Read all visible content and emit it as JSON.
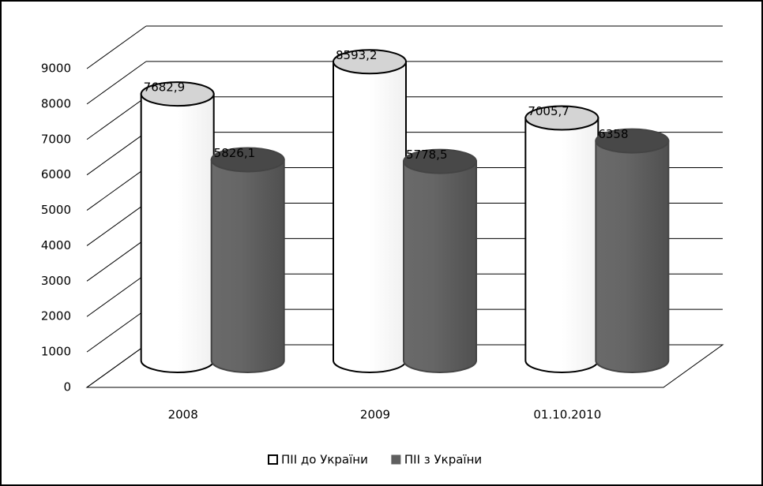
{
  "chart_data": {
    "type": "bar",
    "categories": [
      "2008",
      "2009",
      "01.10.2010"
    ],
    "series": [
      {
        "name": "ПІІ до України",
        "color": "#ffffff",
        "values": [
          7682.9,
          8593.2,
          7005.7
        ],
        "value_labels": [
          "7682,9",
          "8593,2",
          "7005,7"
        ]
      },
      {
        "name": "ПІІ з України",
        "color": "#5f5f5f",
        "values": [
          5826.1,
          5778.5,
          6358
        ],
        "value_labels": [
          "5826,1",
          "5778,5",
          "6358"
        ]
      }
    ],
    "ylim": [
      0,
      9000
    ],
    "yticks": [
      0,
      1000,
      2000,
      3000,
      4000,
      5000,
      6000,
      7000,
      8000,
      9000
    ],
    "grid": true,
    "legend": "bottom"
  }
}
